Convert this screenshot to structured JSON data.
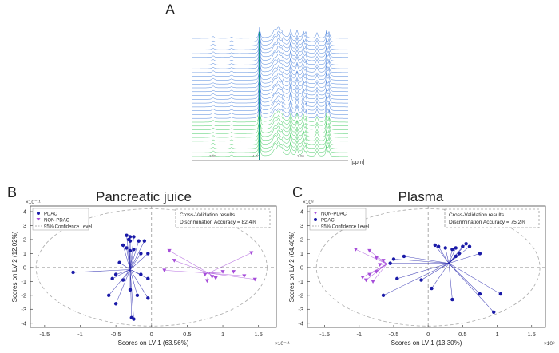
{
  "panels": {
    "a": {
      "letter": "A",
      "ppm_label": "[ppm]",
      "tick_labels": [
        "7.50",
        "4.00",
        "3.00"
      ]
    },
    "b": {
      "letter": "B"
    },
    "c": {
      "letter": "C"
    }
  },
  "colors": {
    "pdac": "#1a1aa8",
    "nonpdac": "#a64dd9",
    "spectra_blue": "#2f6fd6",
    "spectra_green": "#27c24a",
    "spectra_teal": "#12968a",
    "ellipse": "#aaaaaa",
    "axis": "#444444"
  },
  "chart_data": [
    {
      "type": "scatter",
      "panel": "B",
      "title": "Pancreatic juice",
      "xlabel": "Scores on LV 1 (63.56%)",
      "ylabel": "Scores on LV 2 (12.02%)",
      "x_exponent": "×10⁻¹¹",
      "y_exponent": "×10⁻¹¹",
      "xlim": [
        -1.7,
        1.75
      ],
      "ylim": [
        -4.3,
        4.4
      ],
      "xticks": [
        -1.5,
        -1,
        -0.5,
        0,
        0.5,
        1,
        1.5
      ],
      "xtick_labels": [
        "-1.5",
        "-1",
        "-0.5",
        "0",
        "0.5",
        "1",
        "1.5"
      ],
      "yticks": [
        -4,
        -3,
        -2,
        -1,
        0,
        1,
        2,
        3,
        4
      ],
      "ytick_labels": [
        "-4",
        "-3",
        "-2",
        "-1",
        "0",
        "1",
        "2",
        "3",
        "4"
      ],
      "ellipse": {
        "cx": 0,
        "cy": 0,
        "rx": 1.62,
        "ry": 4.2
      },
      "legend": [
        "PDAC",
        "NON-PDAC",
        "95% Confidence Level"
      ],
      "legend_position": "top-left",
      "cv_title": "Cross-Validation results",
      "cv_accuracy": "Discrimination Accuracy = 82.4%",
      "series": [
        {
          "name": "PDAC",
          "marker": "circle",
          "centroid": [
            -0.3,
            -0.15
          ],
          "points": [
            [
              -0.35,
              2.3
            ],
            [
              -0.3,
              2.2
            ],
            [
              -0.25,
              2.2
            ],
            [
              -0.32,
              2.0
            ],
            [
              -0.3,
              1.9
            ],
            [
              -0.18,
              1.9
            ],
            [
              -0.1,
              1.9
            ],
            [
              -0.4,
              1.6
            ],
            [
              -0.35,
              1.4
            ],
            [
              -0.25,
              1.3
            ],
            [
              -0.3,
              1.2
            ],
            [
              -0.15,
              1.0
            ],
            [
              -0.05,
              1.0
            ],
            [
              -0.45,
              0.35
            ],
            [
              -0.5,
              -0.5
            ],
            [
              -0.4,
              -0.9
            ],
            [
              -0.55,
              -0.8
            ],
            [
              -0.15,
              -0.5
            ],
            [
              -0.05,
              -0.8
            ],
            [
              -0.3,
              -1.6
            ],
            [
              -0.6,
              -2.0
            ],
            [
              -0.5,
              -2.6
            ],
            [
              -0.2,
              -2.0
            ],
            [
              -0.05,
              -2.2
            ],
            [
              -0.28,
              -3.6
            ],
            [
              -0.25,
              -3.7
            ],
            [
              -1.1,
              -0.35
            ]
          ]
        },
        {
          "name": "NON-PDAC",
          "marker": "triangle-down",
          "centroid": [
            0.8,
            -0.4
          ],
          "points": [
            [
              0.25,
              1.2
            ],
            [
              0.32,
              0.5
            ],
            [
              0.18,
              -0.2
            ],
            [
              0.75,
              -0.5
            ],
            [
              0.85,
              -0.65
            ],
            [
              0.9,
              -0.75
            ],
            [
              1.0,
              -0.3
            ],
            [
              1.15,
              -0.3
            ],
            [
              1.3,
              -0.6
            ],
            [
              1.45,
              -0.85
            ],
            [
              1.4,
              1.05
            ],
            [
              0.78,
              -0.95
            ]
          ]
        }
      ]
    },
    {
      "type": "scatter",
      "panel": "C",
      "title": "Plasma",
      "xlabel": "Scores on LV 1 (13.30%)",
      "ylabel": "Scores on LV 2 (64.40%)",
      "x_exponent": "×10⁸",
      "y_exponent": "×10⁸",
      "xlim": [
        -1.75,
        1.7
      ],
      "ylim": [
        -4.3,
        4.4
      ],
      "xticks": [
        -1.5,
        -1,
        -0.5,
        0,
        0.5,
        1,
        1.5
      ],
      "xtick_labels": [
        "-1.5",
        "-1",
        "-0.5",
        "0",
        "0.5",
        "1",
        "1.5"
      ],
      "yticks": [
        -4,
        -3,
        -2,
        -1,
        0,
        1,
        2,
        3,
        4
      ],
      "ytick_labels": [
        "-4",
        "-3",
        "-2",
        "-1",
        "0",
        "1",
        "2",
        "3",
        "4"
      ],
      "ellipse": {
        "cx": 0,
        "cy": 0,
        "rx": 1.62,
        "ry": 4.2
      },
      "legend": [
        "NON-PDAC",
        "PDAC",
        "95% Confidence Level"
      ],
      "legend_position": "top-left",
      "cv_title": "Cross-Validation results",
      "cv_accuracy": "Discrimination Accuracy = 75.2%",
      "series": [
        {
          "name": "NON-PDAC",
          "marker": "triangle-down",
          "centroid": [
            -0.6,
            0.25
          ],
          "points": [
            [
              -1.05,
              1.3
            ],
            [
              -0.85,
              1.2
            ],
            [
              -0.75,
              0.7
            ],
            [
              -0.7,
              0.2
            ],
            [
              -0.75,
              -0.3
            ],
            [
              -0.85,
              -0.5
            ],
            [
              -0.8,
              -1.0
            ],
            [
              -0.9,
              -0.9
            ],
            [
              -0.65,
              0.5
            ],
            [
              -0.95,
              -0.7
            ]
          ]
        },
        {
          "name": "PDAC",
          "marker": "circle",
          "centroid": [
            0.3,
            0.3
          ],
          "points": [
            [
              0.1,
              1.6
            ],
            [
              0.15,
              1.5
            ],
            [
              0.25,
              1.4
            ],
            [
              0.35,
              1.3
            ],
            [
              0.4,
              1.4
            ],
            [
              0.55,
              1.7
            ],
            [
              0.45,
              1.0
            ],
            [
              0.4,
              0.8
            ],
            [
              0.5,
              1.5
            ],
            [
              0.6,
              1.5
            ],
            [
              0.75,
              1.0
            ],
            [
              -0.55,
              0.3
            ],
            [
              -0.35,
              0.8
            ],
            [
              -0.45,
              -0.8
            ],
            [
              -0.65,
              -2.0
            ],
            [
              -0.1,
              -0.9
            ],
            [
              0.05,
              -1.5
            ],
            [
              0.35,
              -2.3
            ],
            [
              0.75,
              -1.9
            ],
            [
              1.05,
              -1.9
            ],
            [
              0.95,
              -3.2
            ],
            [
              -0.5,
              0.6
            ]
          ]
        }
      ]
    }
  ]
}
